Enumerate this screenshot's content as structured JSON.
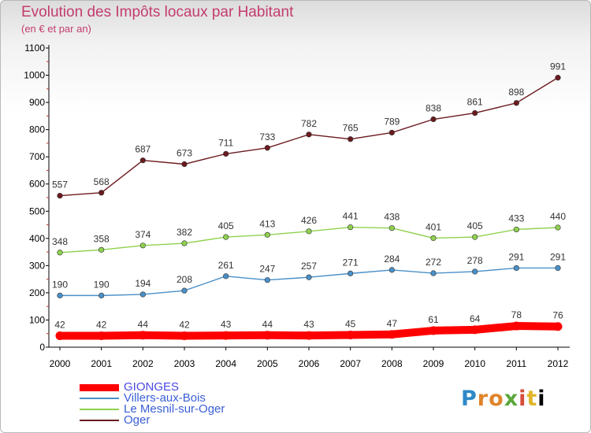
{
  "title": "Evolution des Impôts locaux par Habitant",
  "subtitle": "(en € et par an)",
  "logo_text": "Proxiti",
  "chart_data": {
    "type": "line",
    "title": "Evolution des Impôts locaux par Habitant",
    "subtitle": "(en € et par an)",
    "x": [
      2000,
      2001,
      2002,
      2003,
      2004,
      2005,
      2006,
      2007,
      2008,
      2009,
      2010,
      2011,
      2012
    ],
    "ylim": [
      0,
      1100
    ],
    "yticks": [
      0,
      100,
      200,
      300,
      400,
      500,
      600,
      700,
      800,
      900,
      1000,
      1100
    ],
    "grid": false,
    "legend_position": "bottom-left",
    "series": [
      {
        "name": "GIONGES",
        "color": "#ff0000",
        "values": [
          42,
          42,
          44,
          42,
          43,
          44,
          43,
          45,
          47,
          61,
          64,
          78,
          76
        ]
      },
      {
        "name": "Villers-aux-Bois",
        "color": "#4a90c8",
        "values": [
          190,
          190,
          194,
          208,
          261,
          247,
          257,
          271,
          284,
          272,
          278,
          291,
          291
        ]
      },
      {
        "name": "Le Mesnil-sur-Oger",
        "color": "#8fd14f",
        "values": [
          348,
          358,
          374,
          382,
          405,
          413,
          426,
          441,
          438,
          401,
          405,
          433,
          440
        ]
      },
      {
        "name": "Oger",
        "color": "#6b1a1f",
        "values": [
          557,
          568,
          687,
          673,
          711,
          733,
          782,
          765,
          789,
          838,
          861,
          898,
          991
        ]
      }
    ]
  }
}
